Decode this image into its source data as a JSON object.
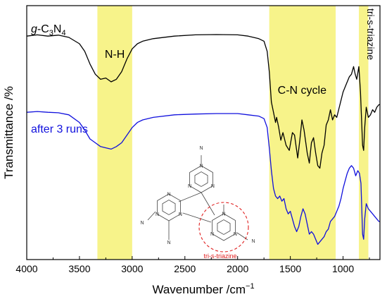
{
  "chart_data": {
    "type": "line",
    "xlabel": "Wavenumber /cm",
    "xlabel_sup": "−1",
    "ylabel": "Transmittance /%",
    "xlim": [
      4000,
      650
    ],
    "ylim": [
      0,
      100
    ],
    "x_reversed": true,
    "x_ticks": [
      4000,
      3500,
      3000,
      2500,
      2000,
      1500,
      1000
    ],
    "grid": false,
    "highlight_color": "#f7f38a",
    "bands": [
      {
        "label": "N-H",
        "from": 3330,
        "to": 3000
      },
      {
        "label": "C-N cycle",
        "from": 1700,
        "to": 1070
      },
      {
        "label": "tri-s-triazine",
        "from": 850,
        "to": 760
      }
    ],
    "series": [
      {
        "name_main": "g-C",
        "name_parts": [
          "g",
          "-C",
          "3",
          "N",
          "4"
        ],
        "color": "#000000",
        "points": [
          [
            4000,
            88
          ],
          [
            3900,
            88.5
          ],
          [
            3800,
            88
          ],
          [
            3700,
            88.4
          ],
          [
            3600,
            87.5
          ],
          [
            3500,
            85
          ],
          [
            3450,
            82
          ],
          [
            3400,
            77
          ],
          [
            3350,
            73
          ],
          [
            3300,
            71
          ],
          [
            3250,
            71.5
          ],
          [
            3200,
            70
          ],
          [
            3150,
            71
          ],
          [
            3100,
            74
          ],
          [
            3050,
            79
          ],
          [
            3000,
            83
          ],
          [
            2950,
            85
          ],
          [
            2900,
            86
          ],
          [
            2800,
            87
          ],
          [
            2600,
            88
          ],
          [
            2400,
            88.5
          ],
          [
            2200,
            88.6
          ],
          [
            2000,
            88.5
          ],
          [
            1900,
            88
          ],
          [
            1800,
            87
          ],
          [
            1750,
            86
          ],
          [
            1720,
            82
          ],
          [
            1700,
            74
          ],
          [
            1680,
            62
          ],
          [
            1660,
            58
          ],
          [
            1640,
            54
          ],
          [
            1630,
            56
          ],
          [
            1610,
            52
          ],
          [
            1590,
            47
          ],
          [
            1570,
            50
          ],
          [
            1540,
            45
          ],
          [
            1510,
            43
          ],
          [
            1480,
            50
          ],
          [
            1460,
            49
          ],
          [
            1430,
            40
          ],
          [
            1410,
            47
          ],
          [
            1390,
            55
          ],
          [
            1370,
            51
          ],
          [
            1340,
            42
          ],
          [
            1320,
            38
          ],
          [
            1300,
            46
          ],
          [
            1280,
            48
          ],
          [
            1260,
            42
          ],
          [
            1240,
            37
          ],
          [
            1220,
            36
          ],
          [
            1200,
            42
          ],
          [
            1180,
            45
          ],
          [
            1160,
            53
          ],
          [
            1140,
            55
          ],
          [
            1120,
            59
          ],
          [
            1100,
            55
          ],
          [
            1080,
            57
          ],
          [
            1060,
            56
          ],
          [
            1030,
            61
          ],
          [
            1000,
            66
          ],
          [
            970,
            69
          ],
          [
            940,
            72
          ],
          [
            920,
            73
          ],
          [
            900,
            76
          ],
          [
            885,
            73
          ],
          [
            870,
            71
          ],
          [
            850,
            76
          ],
          [
            835,
            66
          ],
          [
            815,
            45
          ],
          [
            805,
            43
          ],
          [
            795,
            52
          ],
          [
            780,
            60
          ],
          [
            760,
            56
          ],
          [
            740,
            57
          ],
          [
            720,
            59
          ],
          [
            700,
            58
          ],
          [
            680,
            60
          ],
          [
            660,
            61
          ],
          [
            650,
            61
          ]
        ]
      },
      {
        "name": "after 3 runs",
        "color": "#1010dd",
        "points": [
          [
            4000,
            58
          ],
          [
            3900,
            58.3
          ],
          [
            3800,
            58
          ],
          [
            3700,
            57.8
          ],
          [
            3600,
            57
          ],
          [
            3500,
            54
          ],
          [
            3450,
            51
          ],
          [
            3400,
            47.5
          ],
          [
            3350,
            46
          ],
          [
            3300,
            44.5
          ],
          [
            3250,
            44
          ],
          [
            3200,
            43.5
          ],
          [
            3150,
            44.5
          ],
          [
            3100,
            46
          ],
          [
            3050,
            49
          ],
          [
            3000,
            52
          ],
          [
            2950,
            54
          ],
          [
            2900,
            55
          ],
          [
            2800,
            56
          ],
          [
            2600,
            57
          ],
          [
            2400,
            57.3
          ],
          [
            2200,
            57.5
          ],
          [
            2000,
            57.5
          ],
          [
            1900,
            57
          ],
          [
            1800,
            56.5
          ],
          [
            1750,
            55.5
          ],
          [
            1720,
            52
          ],
          [
            1700,
            44
          ],
          [
            1680,
            35
          ],
          [
            1660,
            28
          ],
          [
            1640,
            25
          ],
          [
            1620,
            24
          ],
          [
            1600,
            25
          ],
          [
            1580,
            23
          ],
          [
            1560,
            24
          ],
          [
            1540,
            20
          ],
          [
            1520,
            18
          ],
          [
            1500,
            19
          ],
          [
            1480,
            16
          ],
          [
            1460,
            13
          ],
          [
            1440,
            11
          ],
          [
            1420,
            13
          ],
          [
            1400,
            17
          ],
          [
            1380,
            20
          ],
          [
            1360,
            18
          ],
          [
            1340,
            14
          ],
          [
            1320,
            10
          ],
          [
            1300,
            11
          ],
          [
            1280,
            10
          ],
          [
            1260,
            8
          ],
          [
            1240,
            6
          ],
          [
            1220,
            7
          ],
          [
            1200,
            8
          ],
          [
            1180,
            9
          ],
          [
            1160,
            11
          ],
          [
            1140,
            12
          ],
          [
            1120,
            15
          ],
          [
            1100,
            16
          ],
          [
            1080,
            17
          ],
          [
            1060,
            19
          ],
          [
            1040,
            21
          ],
          [
            1020,
            24
          ],
          [
            1000,
            28
          ],
          [
            980,
            31
          ],
          [
            960,
            34
          ],
          [
            940,
            36
          ],
          [
            920,
            37
          ],
          [
            900,
            36
          ],
          [
            880,
            33
          ],
          [
            860,
            35
          ],
          [
            845,
            34
          ],
          [
            830,
            30
          ],
          [
            815,
            10
          ],
          [
            805,
            8
          ],
          [
            795,
            16
          ],
          [
            780,
            22
          ],
          [
            760,
            20
          ],
          [
            740,
            19
          ],
          [
            720,
            18
          ],
          [
            700,
            17
          ],
          [
            680,
            16
          ],
          [
            660,
            15
          ],
          [
            650,
            15
          ]
        ]
      }
    ],
    "inset": {
      "label": "tri-s-triazine",
      "atom_label": "N"
    }
  }
}
